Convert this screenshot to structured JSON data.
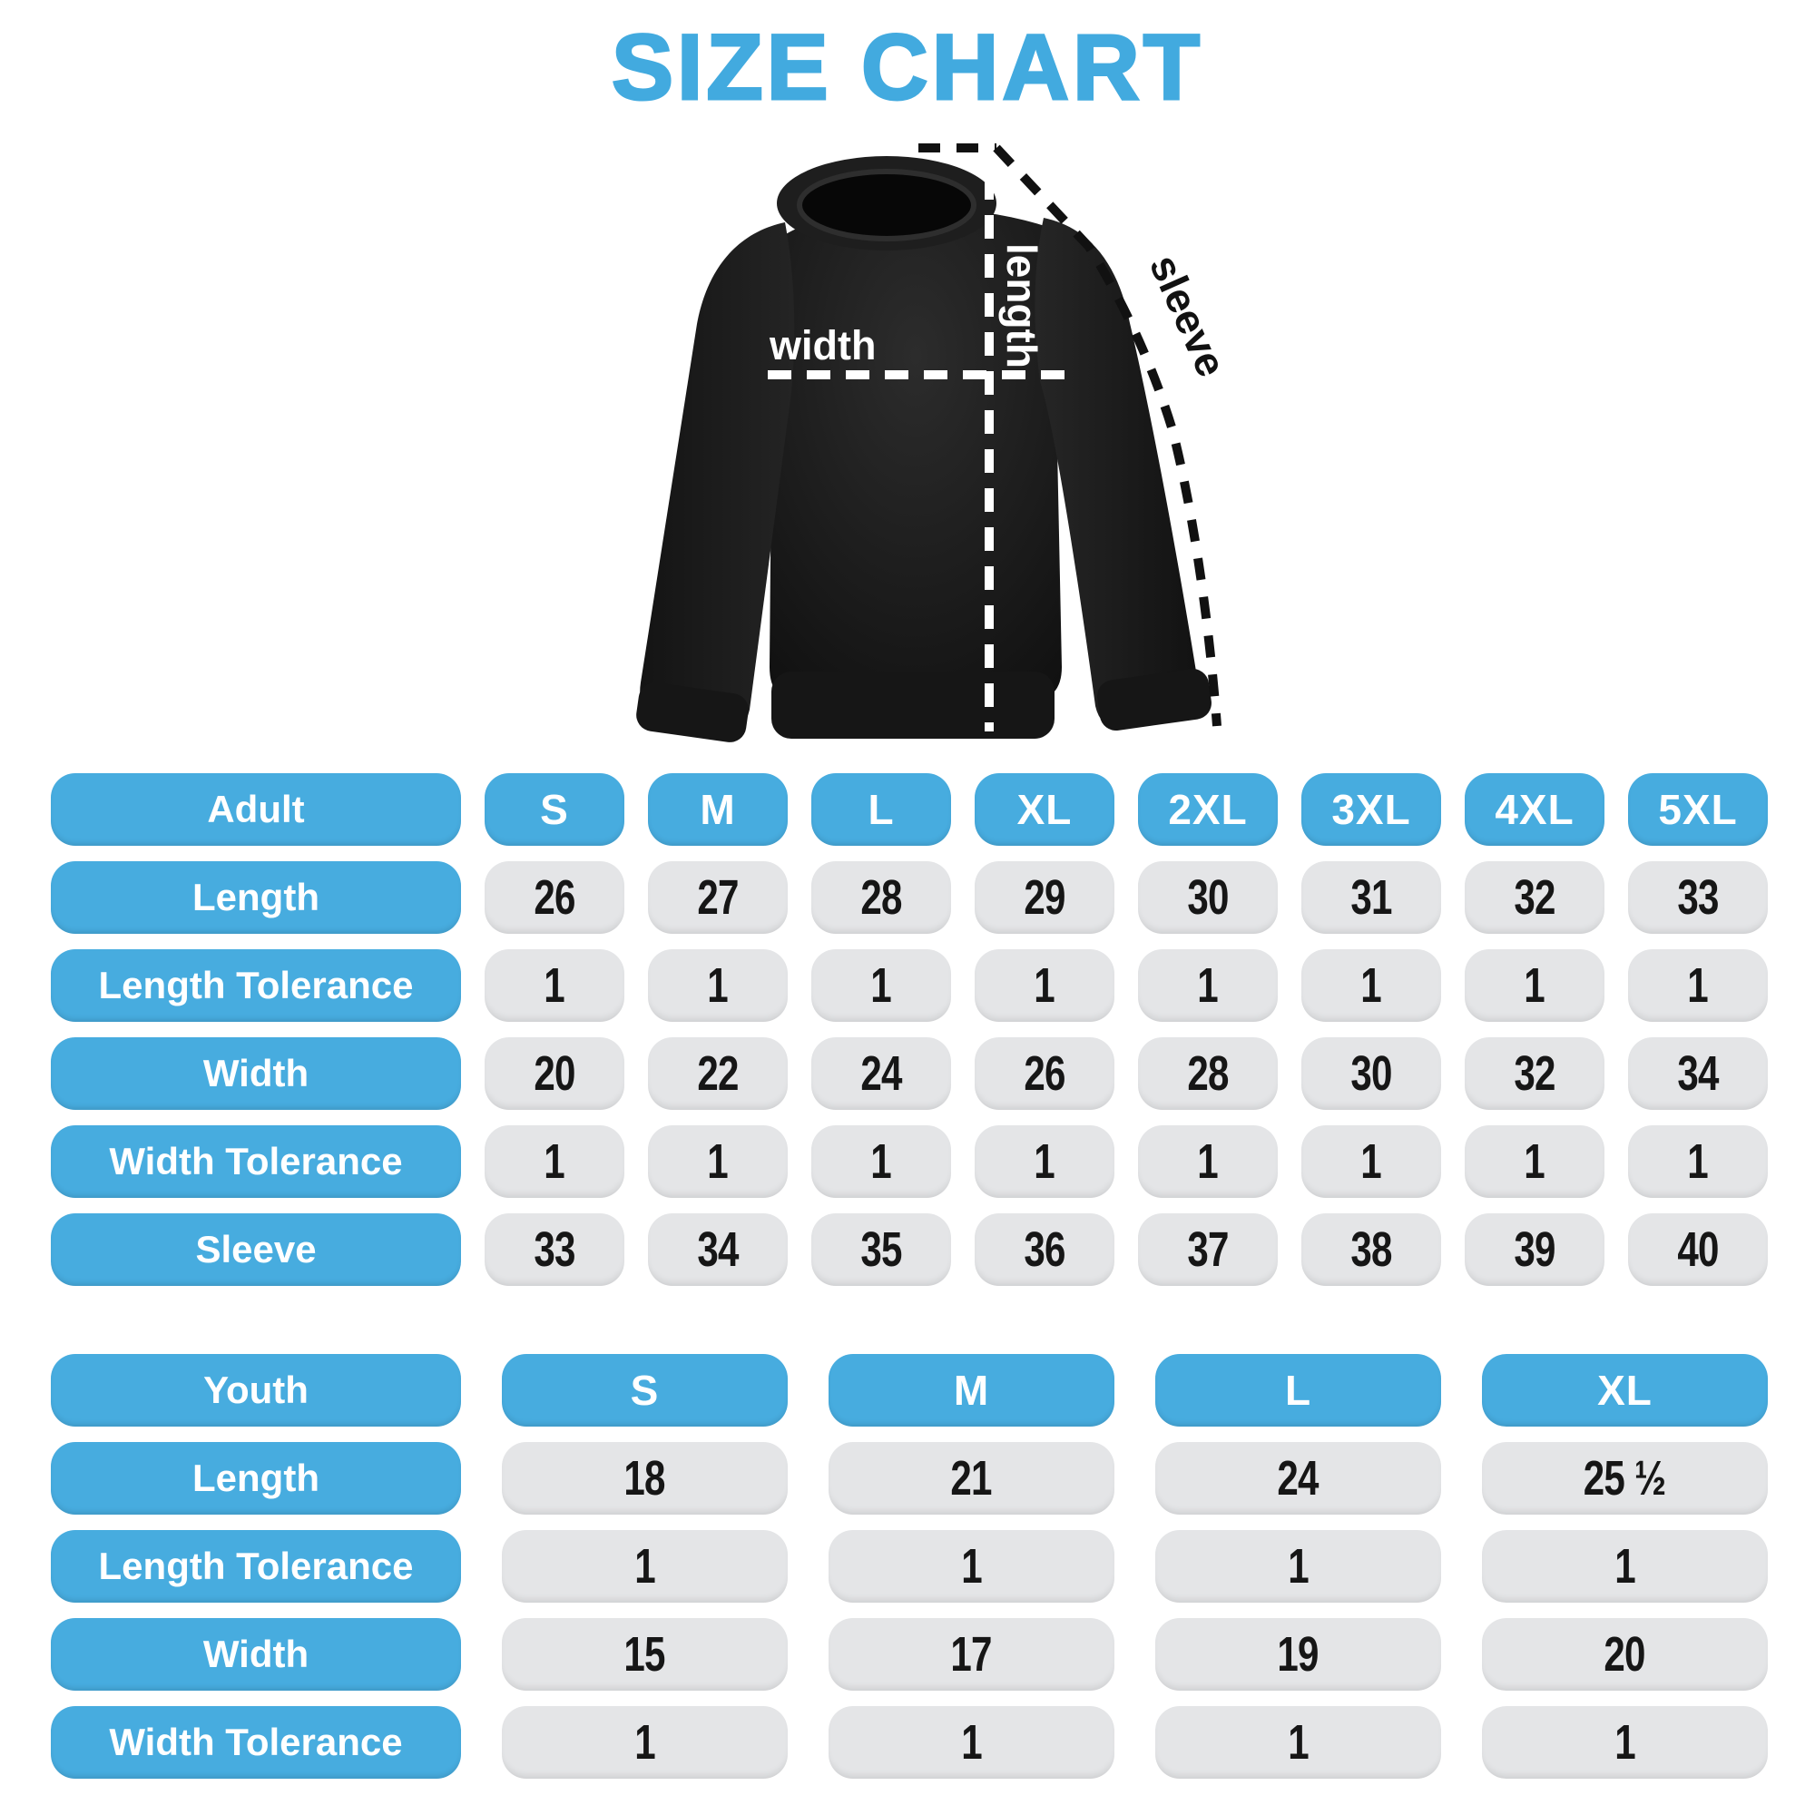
{
  "title": "SIZE CHART",
  "colors": {
    "accent_blue": "#47ACDF",
    "cell_gray": "#E4E5E7",
    "digit_black": "#161616",
    "garment_black": "#1a1a1a",
    "background": "#ffffff"
  },
  "diagram": {
    "length_label": "length",
    "width_label": "width",
    "sleeve_label": "sleeve"
  },
  "chart_data": [
    {
      "type": "table",
      "name": "Adult",
      "header": {
        "label": "Adult",
        "sizes": [
          "S",
          "M",
          "L",
          "XL",
          "2XL",
          "3XL",
          "4XL",
          "5XL"
        ]
      },
      "rows": [
        {
          "label": "Length",
          "values": [
            "26",
            "27",
            "28",
            "29",
            "30",
            "31",
            "32",
            "33"
          ]
        },
        {
          "label": "Length Tolerance",
          "values": [
            "1",
            "1",
            "1",
            "1",
            "1",
            "1",
            "1",
            "1"
          ]
        },
        {
          "label": "Width",
          "values": [
            "20",
            "22",
            "24",
            "26",
            "28",
            "30",
            "32",
            "34"
          ]
        },
        {
          "label": "Width Tolerance",
          "values": [
            "1",
            "1",
            "1",
            "1",
            "1",
            "1",
            "1",
            "1"
          ]
        },
        {
          "label": "Sleeve",
          "values": [
            "33",
            "34",
            "35",
            "36",
            "37",
            "38",
            "39",
            "40"
          ]
        }
      ]
    },
    {
      "type": "table",
      "name": "Youth",
      "header": {
        "label": "Youth",
        "sizes": [
          "S",
          "M",
          "L",
          "XL"
        ]
      },
      "rows": [
        {
          "label": "Length",
          "values": [
            "18",
            "21",
            "24",
            "25 ½"
          ]
        },
        {
          "label": "Length Tolerance",
          "values": [
            "1",
            "1",
            "1",
            "1"
          ]
        },
        {
          "label": "Width",
          "values": [
            "15",
            "17",
            "19",
            "20"
          ]
        },
        {
          "label": "Width Tolerance",
          "values": [
            "1",
            "1",
            "1",
            "1"
          ]
        }
      ]
    }
  ]
}
